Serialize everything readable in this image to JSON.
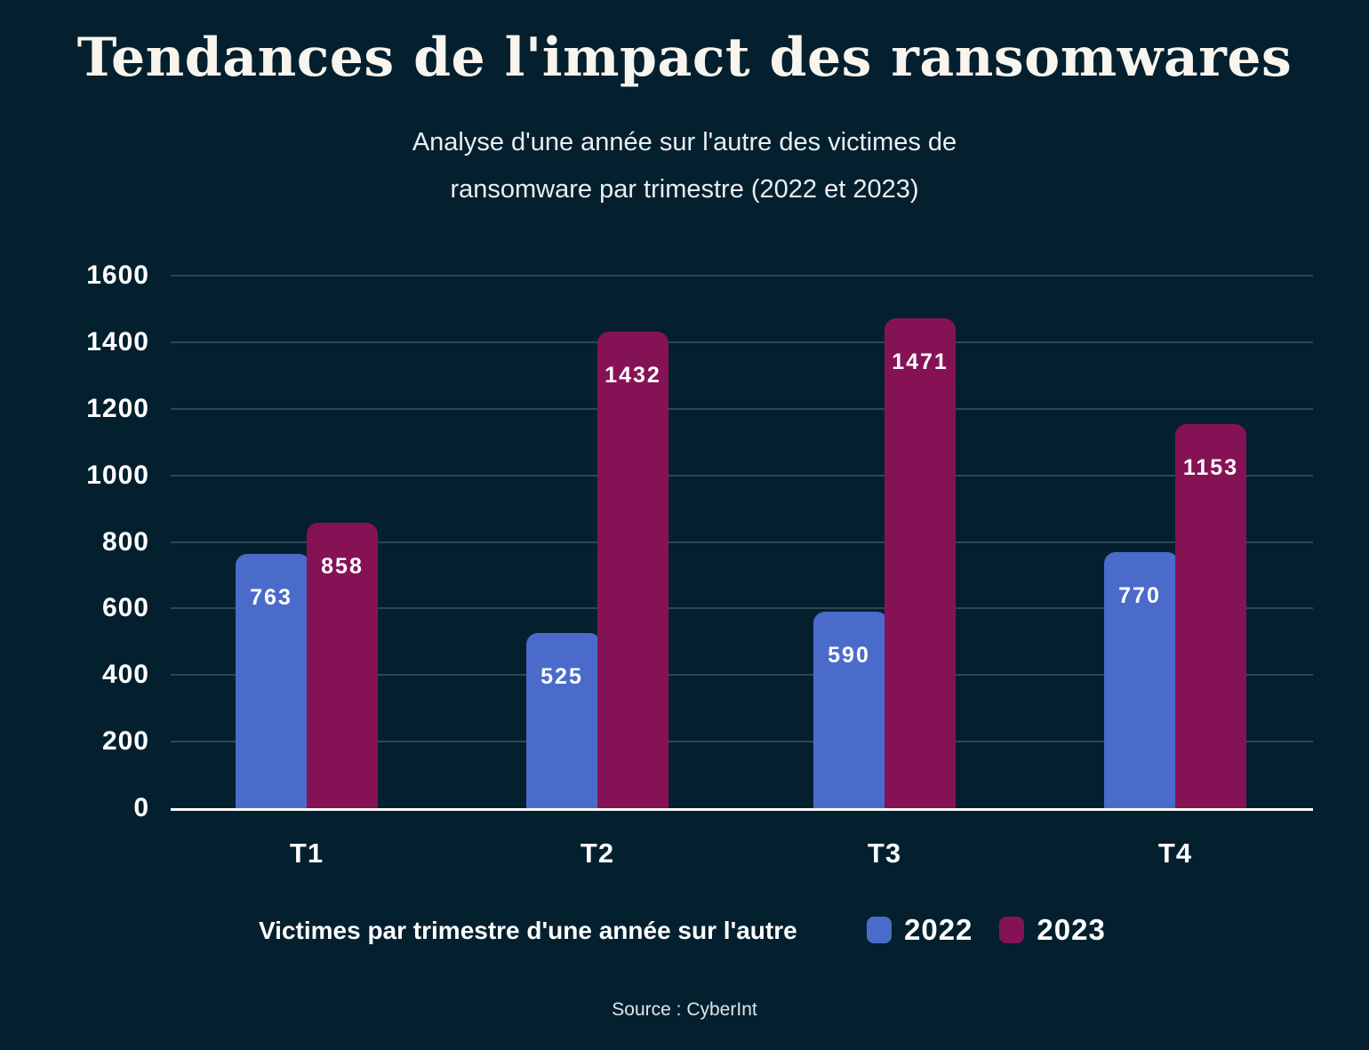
{
  "page": {
    "title": "Tendances de l'impact des ransomwares",
    "subtitle_lines": [
      "Analyse d'une année sur l'autre des victimes de",
      "ransomware par trimestre (2022 et 2023)"
    ],
    "source": "Source : CyberInt"
  },
  "legend": {
    "label": "Victimes par trimestre d'une année sur l'autre"
  },
  "colors": {
    "background": "#04202E",
    "title_text": "#F8F5EE",
    "subtitle_text": "#E9EEF2",
    "axis_text": "#FFFFFF",
    "gridline": "#2F4557",
    "baseline": "#FFFFFF",
    "bar_label_text": "#FFFFFF",
    "series_2022": "#4B6BCB",
    "series_2023": "#861256"
  },
  "chart_data": {
    "type": "bar",
    "title": "Tendances de l'impact des ransomwares",
    "subtitle": "Analyse d'une année sur l'autre des victimes de ransomware par trimestre (2022 et 2023)",
    "categories": [
      "T1",
      "T2",
      "T3",
      "T4"
    ],
    "series": [
      {
        "name": "2022",
        "color": "#4B6BCB",
        "values": [
          763,
          525,
          590,
          770
        ]
      },
      {
        "name": "2023",
        "color": "#861256",
        "values": [
          858,
          1432,
          1471,
          1153
        ]
      }
    ],
    "xlabel": "",
    "ylabel": "",
    "ylim": [
      0,
      1600
    ],
    "ytick_step": 200,
    "yticks": [
      0,
      200,
      400,
      600,
      800,
      1000,
      1200,
      1400,
      1600
    ],
    "grid": true,
    "data_labels": true,
    "legend_label": "Victimes par trimestre d'une année sur l'autre",
    "legend_position": "bottom",
    "source": "Source : CyberInt"
  }
}
